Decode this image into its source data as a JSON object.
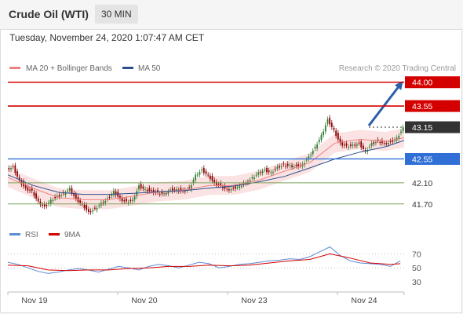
{
  "header": {
    "title": "Crude Oil (WTI)",
    "timeframe": "30 MIN",
    "datetime": "Tuesday, November 24, 2020 1:07:47 AM CET"
  },
  "legend": {
    "ma20_label": "MA 20 + Bollinger Bands",
    "ma50_label": "MA 50",
    "credit": "Research © 2020 Trading Central"
  },
  "rsi_legend": {
    "rsi_label": "RSI",
    "ma9_label": "9MA"
  },
  "colors": {
    "resistance": "#d40000",
    "support_green": "#7aa35a",
    "pivot_blue": "#2f6fd6",
    "current_price": "#333333",
    "candle_up": "#2e7d32",
    "candle_down": "#8b0000",
    "ma20": "#f08080",
    "ma50": "#2b4f8c",
    "band_fill": "#fbe3e3",
    "rsi": "#5b8ad6",
    "rsi_ma": "#d40000",
    "arrow": "#2b5fa8"
  },
  "chart_data": [
    {
      "type": "line",
      "name": "price",
      "x_ticks": [
        "Nov 19",
        "Nov 20",
        "Nov 23",
        "Nov 24"
      ],
      "ylim": [
        41.4,
        44.1
      ],
      "levels": [
        {
          "value": 44.0,
          "label": "44.00",
          "kind": "resistance"
        },
        {
          "value": 43.55,
          "label": "43.55",
          "kind": "resistance"
        },
        {
          "value": 43.15,
          "label": "43.15",
          "kind": "current"
        },
        {
          "value": 42.55,
          "label": "42.55",
          "kind": "pivot"
        },
        {
          "value": 42.1,
          "label": "42.10",
          "kind": "support"
        },
        {
          "value": 41.7,
          "label": "41.70",
          "kind": "support"
        }
      ],
      "close_path": [
        [
          0,
          42.38
        ],
        [
          5,
          42.4
        ],
        [
          10,
          42.15
        ],
        [
          15,
          42.0
        ],
        [
          20,
          41.95
        ],
        [
          25,
          41.75
        ],
        [
          30,
          41.65
        ],
        [
          35,
          41.78
        ],
        [
          40,
          41.85
        ],
        [
          45,
          41.9
        ],
        [
          50,
          42.0
        ],
        [
          55,
          41.8
        ],
        [
          60,
          41.7
        ],
        [
          65,
          41.55
        ],
        [
          70,
          41.62
        ],
        [
          75,
          41.72
        ],
        [
          80,
          41.8
        ],
        [
          85,
          41.95
        ],
        [
          90,
          41.8
        ],
        [
          95,
          41.75
        ],
        [
          100,
          41.78
        ],
        [
          105,
          42.05
        ],
        [
          110,
          41.98
        ],
        [
          115,
          41.95
        ],
        [
          120,
          41.92
        ],
        [
          125,
          41.9
        ],
        [
          130,
          41.97
        ],
        [
          135,
          41.98
        ],
        [
          140,
          41.95
        ],
        [
          145,
          42.0
        ],
        [
          150,
          42.25
        ],
        [
          155,
          42.35
        ],
        [
          160,
          42.25
        ],
        [
          165,
          42.1
        ],
        [
          170,
          42.05
        ],
        [
          175,
          41.98
        ],
        [
          180,
          42.0
        ],
        [
          185,
          42.05
        ],
        [
          190,
          42.1
        ],
        [
          195,
          42.2
        ],
        [
          200,
          42.3
        ],
        [
          205,
          42.35
        ],
        [
          210,
          42.3
        ],
        [
          215,
          42.4
        ],
        [
          220,
          42.45
        ],
        [
          225,
          42.43
        ],
        [
          230,
          42.42
        ],
        [
          235,
          42.45
        ],
        [
          240,
          42.6
        ],
        [
          245,
          42.78
        ],
        [
          250,
          43.0
        ],
        [
          255,
          43.3
        ],
        [
          260,
          43.1
        ],
        [
          265,
          42.85
        ],
        [
          270,
          42.8
        ],
        [
          275,
          42.82
        ],
        [
          280,
          42.85
        ],
        [
          285,
          42.7
        ],
        [
          290,
          42.85
        ],
        [
          295,
          42.9
        ],
        [
          300,
          42.85
        ],
        [
          305,
          42.88
        ],
        [
          310,
          42.95
        ],
        [
          315,
          43.15
        ]
      ],
      "ma20": [
        [
          0,
          42.2
        ],
        [
          20,
          42.0
        ],
        [
          40,
          41.82
        ],
        [
          60,
          41.78
        ],
        [
          80,
          41.78
        ],
        [
          100,
          41.85
        ],
        [
          120,
          41.93
        ],
        [
          140,
          41.96
        ],
        [
          160,
          42.05
        ],
        [
          180,
          42.05
        ],
        [
          200,
          42.15
        ],
        [
          220,
          42.32
        ],
        [
          240,
          42.48
        ],
        [
          260,
          42.85
        ],
        [
          280,
          42.92
        ],
        [
          300,
          42.88
        ],
        [
          315,
          42.95
        ]
      ],
      "ma50": [
        [
          0,
          42.25
        ],
        [
          20,
          42.05
        ],
        [
          40,
          41.92
        ],
        [
          60,
          41.88
        ],
        [
          80,
          41.88
        ],
        [
          100,
          41.9
        ],
        [
          120,
          41.93
        ],
        [
          140,
          41.95
        ],
        [
          160,
          42.0
        ],
        [
          180,
          42.04
        ],
        [
          200,
          42.12
        ],
        [
          220,
          42.22
        ],
        [
          240,
          42.38
        ],
        [
          260,
          42.55
        ],
        [
          280,
          42.68
        ],
        [
          300,
          42.78
        ],
        [
          315,
          42.9
        ]
      ]
    },
    {
      "type": "line",
      "name": "rsi",
      "ylim": [
        20,
        85
      ],
      "y_ticks": [
        70,
        50,
        30
      ],
      "rsi_path": [
        [
          0,
          58
        ],
        [
          8,
          55
        ],
        [
          16,
          50
        ],
        [
          24,
          45
        ],
        [
          32,
          42
        ],
        [
          40,
          44
        ],
        [
          48,
          47
        ],
        [
          56,
          49
        ],
        [
          64,
          47
        ],
        [
          72,
          44
        ],
        [
          80,
          48
        ],
        [
          88,
          52
        ],
        [
          96,
          50
        ],
        [
          104,
          47
        ],
        [
          112,
          52
        ],
        [
          120,
          55
        ],
        [
          128,
          53
        ],
        [
          136,
          50
        ],
        [
          144,
          54
        ],
        [
          152,
          58
        ],
        [
          160,
          56
        ],
        [
          168,
          50
        ],
        [
          176,
          52
        ],
        [
          184,
          55
        ],
        [
          192,
          56
        ],
        [
          200,
          58
        ],
        [
          208,
          60
        ],
        [
          216,
          61
        ],
        [
          224,
          63
        ],
        [
          232,
          62
        ],
        [
          240,
          66
        ],
        [
          248,
          73
        ],
        [
          256,
          80
        ],
        [
          264,
          68
        ],
        [
          272,
          60
        ],
        [
          280,
          57
        ],
        [
          288,
          56
        ],
        [
          296,
          55
        ],
        [
          304,
          52
        ],
        [
          312,
          60
        ]
      ],
      "ma9_path": [
        [
          0,
          54
        ],
        [
          16,
          53
        ],
        [
          32,
          47
        ],
        [
          48,
          46
        ],
        [
          64,
          47
        ],
        [
          80,
          47
        ],
        [
          96,
          49
        ],
        [
          112,
          50
        ],
        [
          128,
          52
        ],
        [
          144,
          52
        ],
        [
          160,
          54
        ],
        [
          176,
          53
        ],
        [
          192,
          54
        ],
        [
          208,
          57
        ],
        [
          224,
          60
        ],
        [
          240,
          62
        ],
        [
          256,
          70
        ],
        [
          272,
          64
        ],
        [
          288,
          57
        ],
        [
          304,
          55
        ],
        [
          312,
          56
        ]
      ]
    }
  ]
}
